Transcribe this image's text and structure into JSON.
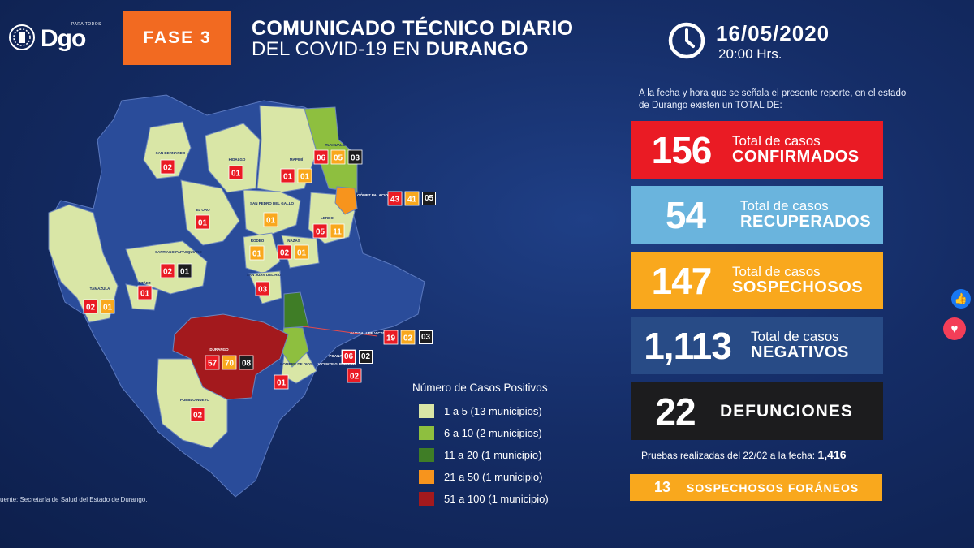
{
  "header": {
    "logo_small": "PARA TODOS",
    "logo_main": "Dgo",
    "fase": "FASE 3",
    "title_line1": "COMUNICADO TÉCNICO DIARIO",
    "title_line2_regular": "DEL COVID-19 EN ",
    "title_line2_bold": "DURANGO",
    "date": "16/05/2020",
    "time": "20:00 Hrs."
  },
  "intro": "A la fecha y hora que se señala el presente reporte, en el estado de Durango existen un TOTAL DE:",
  "stats": {
    "confirmados": {
      "value": "156",
      "label_top": "Total de casos",
      "label_bottom": "CONFIRMADOS",
      "color": "#ea1b24"
    },
    "recuperados": {
      "value": "54",
      "label_top": "Total de casos",
      "label_bottom": "RECUPERADOS",
      "color": "#6ab4dd"
    },
    "sospechosos": {
      "value": "147",
      "label_top": "Total de casos",
      "label_bottom": "SOSPECHOSOS",
      "color": "#f9a81d"
    },
    "negativos": {
      "value": "1,113",
      "label_top": "Total de casos",
      "label_bottom": "NEGATIVOS",
      "color": "#284b86"
    },
    "defunciones": {
      "value": "22",
      "label": "DEFUNCIONES",
      "color": "#1c1c1e"
    }
  },
  "pruebas": {
    "text": "Pruebas realizadas del 22/02 a la fecha:",
    "value": "1,416"
  },
  "foraneos": {
    "value": "13",
    "label": "SOSPECHOSOS FORÁNEOS"
  },
  "legend": {
    "title": "Número de Casos Positivos",
    "items": [
      {
        "label": "1 a 5",
        "detail": "(13 municipios)",
        "color": "#d9e6a6"
      },
      {
        "label": "6 a 10",
        "detail": "(2 municipios)",
        "color": "#8ebf3f"
      },
      {
        "label": "11 a 20",
        "detail": "(1 municipio)",
        "color": "#3f7d26"
      },
      {
        "label": "21 a 50",
        "detail": "(1 municipio)",
        "color": "#f7941d"
      },
      {
        "label": "51 a 100",
        "detail": "(1 municipio)",
        "color": "#a3191d"
      }
    ]
  },
  "source": "uente: Secretaría de Salud del Estado de Durango.",
  "map": {
    "municipalities": [
      {
        "name": "SAN BERNARDO",
        "counts": [
          "02"
        ]
      },
      {
        "name": "HIDALGO",
        "counts": [
          "01"
        ]
      },
      {
        "name": "TLAHUALILO",
        "counts": [
          "06",
          "05",
          "03"
        ]
      },
      {
        "name": "MAPIMÍ",
        "counts": [
          "01",
          "01"
        ]
      },
      {
        "name": "GÓMEZ PALACIO",
        "counts": [
          "43",
          "41",
          "05"
        ]
      },
      {
        "name": "SAN PEDRO DEL GALLO",
        "counts": [
          "01"
        ]
      },
      {
        "name": "EL ORO",
        "counts": [
          "01"
        ]
      },
      {
        "name": "LERDO",
        "counts": [
          "05",
          "11"
        ]
      },
      {
        "name": "RODEO",
        "counts": [
          "01"
        ]
      },
      {
        "name": "NAZAS",
        "counts": [
          "02",
          "01"
        ]
      },
      {
        "name": "SANTIAGO PAPASQUIARO",
        "counts": [
          "02",
          "01"
        ]
      },
      {
        "name": "OTÁEZ",
        "counts": [
          "01"
        ]
      },
      {
        "name": "SAN JUAN DEL RÍO",
        "counts": [
          "03"
        ]
      },
      {
        "name": "TAMAZULA",
        "counts": [
          "02",
          "01"
        ]
      },
      {
        "name": "GUADALUPE VICTORIA",
        "counts": [
          "19",
          "02",
          "03"
        ]
      },
      {
        "name": "DURANGO",
        "counts": [
          "57",
          "70",
          "08"
        ]
      },
      {
        "name": "POANAS",
        "counts": [
          "06",
          "02"
        ]
      },
      {
        "name": "NOMBRE DE DIOS",
        "counts": [
          "01"
        ]
      },
      {
        "name": "VICENTE GUERRERO",
        "counts": [
          "02"
        ]
      },
      {
        "name": "PUEBLO NUEVO",
        "counts": [
          "02"
        ]
      }
    ]
  }
}
